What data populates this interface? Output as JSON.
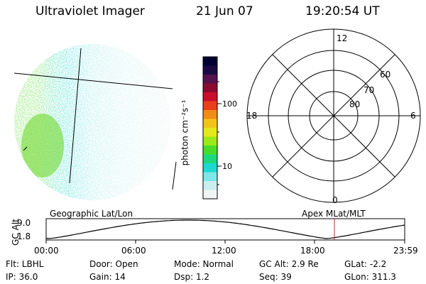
{
  "header": {
    "instrument": "Ultraviolet Imager",
    "date": "21 Jun 07",
    "time": "19:20:54 UT"
  },
  "colorbar": {
    "unit_label": "photon cm⁻²s⁻¹",
    "ticks": [
      "100",
      "10"
    ],
    "colors": [
      "#000033",
      "#1a0a44",
      "#55104f",
      "#8a0a30",
      "#c8102a",
      "#e8401a",
      "#f08c1a",
      "#f2c41a",
      "#e4e81a",
      "#9ce81a",
      "#48dc2a",
      "#1ed880",
      "#1ed8d0",
      "#7ee6e6",
      "#c8eeee",
      "#f0f4f4"
    ]
  },
  "polar_grid": {
    "hour_labels": {
      "top": "12",
      "left": "18",
      "right": "6",
      "bottom": "0"
    },
    "lat_labels": [
      "60",
      "70",
      "80"
    ]
  },
  "timeline": {
    "left_header": "Geographic Lat/Lon",
    "right_header": "Apex MLat/MLT",
    "y_axis_label": "GC Alt",
    "y_ticks": [
      "9.0",
      "1.8"
    ],
    "x_ticks": [
      "00:00",
      "06:00",
      "12:00",
      "18:00",
      "23:59"
    ],
    "curve_color": "#000000",
    "marker_color": "#b03030"
  },
  "status": {
    "filter": "Flt: LBHL",
    "door": "Door: Open",
    "mode": "Mode: Normal",
    "gc_alt": "GC Alt: 2.9 Re",
    "glat": "GLat:  -2.2",
    "ip": "IP: 36.0",
    "gain": "Gain: 14",
    "dsp": "Dsp:     1.2",
    "seq": "Seq: 39",
    "glon": "GLon: 311.3"
  }
}
